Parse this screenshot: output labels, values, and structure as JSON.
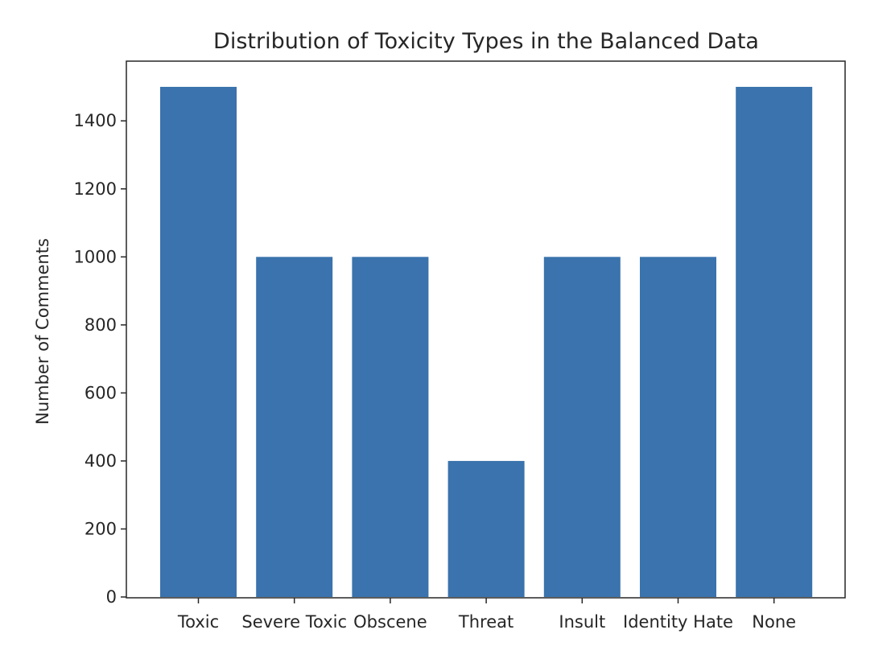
{
  "chart_data": {
    "type": "bar",
    "title": "Distribution of Toxicity Types in the Balanced Data",
    "xlabel": "",
    "ylabel": "Number of Comments",
    "categories": [
      "Toxic",
      "Severe Toxic",
      "Obscene",
      "Threat",
      "Insult",
      "Identity Hate",
      "None"
    ],
    "values": [
      1500,
      1000,
      1000,
      400,
      1000,
      1000,
      1500
    ],
    "yticks": [
      0,
      200,
      400,
      600,
      800,
      1000,
      1200,
      1400
    ],
    "ylim": [
      0,
      1575
    ],
    "grid": false,
    "bar_color": "#3a73ad"
  }
}
